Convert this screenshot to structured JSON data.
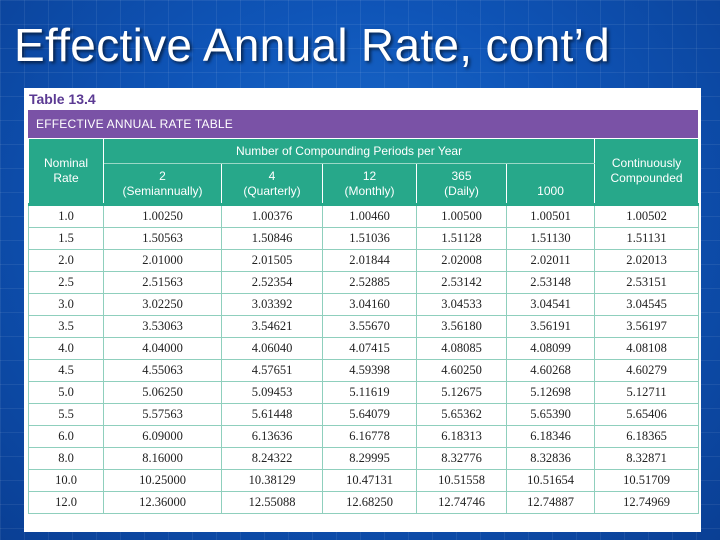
{
  "slide": {
    "title": "Effective Annual Rate, cont’d"
  },
  "table": {
    "label": "Table 13.4",
    "banner": "EFFECTIVE ANNUAL RATE TABLE",
    "group_header": "Number of Compounding Periods per Year",
    "nominal_header": [
      "Nominal",
      "Rate"
    ],
    "continuous_header": [
      "Continuously",
      "Compounded"
    ],
    "period_headers": [
      [
        "2",
        "(Semiannually)"
      ],
      [
        "4",
        "(Quarterly)"
      ],
      [
        "12",
        "(Monthly)"
      ],
      [
        "365",
        "(Daily)"
      ],
      [
        "",
        "1000"
      ]
    ],
    "rows": [
      [
        "1.0",
        "1.00250",
        "1.00376",
        "1.00460",
        "1.00500",
        "1.00501",
        "1.00502"
      ],
      [
        "1.5",
        "1.50563",
        "1.50846",
        "1.51036",
        "1.51128",
        "1.51130",
        "1.51131"
      ],
      [
        "2.0",
        "2.01000",
        "2.01505",
        "2.01844",
        "2.02008",
        "2.02011",
        "2.02013"
      ],
      [
        "2.5",
        "2.51563",
        "2.52354",
        "2.52885",
        "2.53142",
        "2.53148",
        "2.53151"
      ],
      [
        "3.0",
        "3.02250",
        "3.03392",
        "3.04160",
        "3.04533",
        "3.04541",
        "3.04545"
      ],
      [
        "3.5",
        "3.53063",
        "3.54621",
        "3.55670",
        "3.56180",
        "3.56191",
        "3.56197"
      ],
      [
        "4.0",
        "4.04000",
        "4.06040",
        "4.07415",
        "4.08085",
        "4.08099",
        "4.08108"
      ],
      [
        "4.5",
        "4.55063",
        "4.57651",
        "4.59398",
        "4.60250",
        "4.60268",
        "4.60279"
      ],
      [
        "5.0",
        "5.06250",
        "5.09453",
        "5.11619",
        "5.12675",
        "5.12698",
        "5.12711"
      ],
      [
        "5.5",
        "5.57563",
        "5.61448",
        "5.64079",
        "5.65362",
        "5.65390",
        "5.65406"
      ],
      [
        "6.0",
        "6.09000",
        "6.13636",
        "6.16778",
        "6.18313",
        "6.18346",
        "6.18365"
      ],
      [
        "8.0",
        "8.16000",
        "8.24322",
        "8.29995",
        "8.32776",
        "8.32836",
        "8.32871"
      ],
      [
        "10.0",
        "10.25000",
        "10.38129",
        "10.47131",
        "10.51558",
        "10.51654",
        "10.51709"
      ],
      [
        "12.0",
        "12.36000",
        "12.55088",
        "12.68250",
        "12.74746",
        "12.74887",
        "12.74969"
      ]
    ]
  },
  "colors": {
    "background": "#0f55b8",
    "banner": "#7a52a6",
    "header": "#27a88a",
    "label": "#5b3a93"
  }
}
